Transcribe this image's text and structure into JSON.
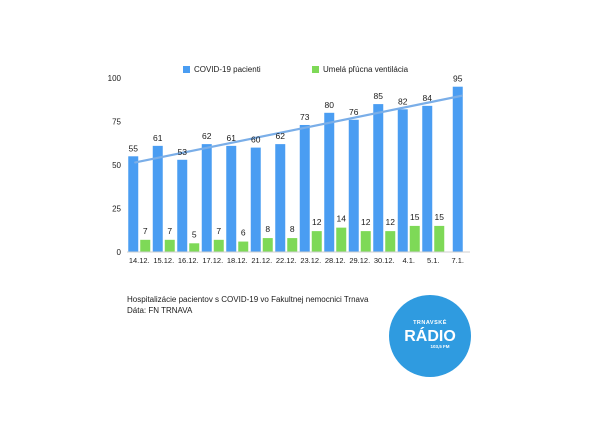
{
  "chart_data": {
    "type": "bar",
    "title": "",
    "xlabel": "",
    "ylabel": "",
    "categories": [
      "14.12.",
      "15.12.",
      "16.12.",
      "17.12.",
      "18.12.",
      "21.12.",
      "22.12.",
      "23.12.",
      "28.12.",
      "29.12.",
      "30.12.",
      "4.1.",
      "5.1.",
      "7.1."
    ],
    "series": [
      {
        "name": "COVID-19 pacienti",
        "values": [
          55,
          61,
          53,
          62,
          61,
          60,
          62,
          73,
          80,
          76,
          85,
          82,
          84,
          95
        ],
        "color": "#4a9df2"
      },
      {
        "name": "Umelá pľúcna ventilácia",
        "values": [
          7,
          7,
          5,
          7,
          6,
          8,
          8,
          12,
          14,
          12,
          12,
          15,
          15,
          null
        ],
        "color": "#7ed957"
      }
    ],
    "trendline": {
      "series": "COVID-19 pacienti",
      "type": "linear",
      "color": "#7aaee8"
    },
    "ylim": [
      0,
      100
    ],
    "yticks": [
      0,
      25,
      50,
      75,
      100
    ],
    "grid": false,
    "legend": "top"
  },
  "caption": {
    "line1": "Hospitalizácie pacientov s COVID-19 vo Fakultnej nemocnici Trnava",
    "line2": "Dáta: FN TRNAVA"
  },
  "logo": {
    "top_text": "TRNAVSKÉ",
    "main_text": "RÁDIO",
    "frequency": "103,5 FM",
    "color": "#2f9be0"
  }
}
